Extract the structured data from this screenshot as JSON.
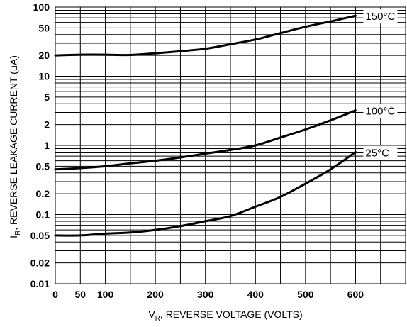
{
  "chart_data": {
    "type": "line",
    "title": "",
    "xlabel": "V",
    "xlabel_sub": "R",
    "xlabel_rest": ", REVERSE VOLTAGE (VOLTS)",
    "ylabel": "I",
    "ylabel_sub": "R",
    "ylabel_rest": ", REVERSE LEAKAGE CURRENT (μA)",
    "xlim": [
      0,
      700
    ],
    "ylim": [
      0.01,
      100
    ],
    "y_scale": "log",
    "grid": true,
    "x_ticks": [
      {
        "value": 0,
        "label": "0"
      },
      {
        "value": 50,
        "label": "50"
      },
      {
        "value": 100,
        "label": "100"
      },
      {
        "value": 200,
        "label": "200"
      },
      {
        "value": 300,
        "label": "300"
      },
      {
        "value": 400,
        "label": "400"
      },
      {
        "value": 500,
        "label": "500"
      },
      {
        "value": 600,
        "label": "600"
      }
    ],
    "x_gridlines": [
      0,
      50,
      100,
      150,
      200,
      250,
      300,
      350,
      400,
      450,
      500,
      550,
      600,
      650,
      700
    ],
    "y_ticks": [
      {
        "value": 0.01,
        "label": "0.01"
      },
      {
        "value": 0.02,
        "label": "0.02"
      },
      {
        "value": 0.05,
        "label": "0.05"
      },
      {
        "value": 0.1,
        "label": "0.1"
      },
      {
        "value": 0.2,
        "label": "0.2"
      },
      {
        "value": 0.5,
        "label": "0.5"
      },
      {
        "value": 1,
        "label": "1"
      },
      {
        "value": 2,
        "label": "2"
      },
      {
        "value": 5,
        "label": "5"
      },
      {
        "value": 10,
        "label": "10"
      },
      {
        "value": 20,
        "label": "20"
      },
      {
        "value": 50,
        "label": "50"
      },
      {
        "value": 100,
        "label": "100"
      }
    ],
    "y_gridlines": [
      0.01,
      0.02,
      0.03,
      0.04,
      0.05,
      0.06,
      0.07,
      0.08,
      0.09,
      0.1,
      0.2,
      0.3,
      0.4,
      0.5,
      0.6,
      0.7,
      0.8,
      0.9,
      1,
      2,
      3,
      4,
      5,
      6,
      7,
      8,
      9,
      10,
      20,
      30,
      40,
      50,
      60,
      70,
      80,
      90,
      100
    ],
    "series": [
      {
        "name": "150°C",
        "x": [
          0,
          50,
          100,
          150,
          200,
          250,
          300,
          350,
          400,
          450,
          500,
          550,
          600
        ],
        "y": [
          20,
          20.5,
          20.5,
          20.3,
          21.5,
          23,
          25,
          29,
          34,
          42,
          52,
          62,
          75
        ]
      },
      {
        "name": "100°C",
        "x": [
          0,
          50,
          100,
          150,
          200,
          250,
          300,
          350,
          400,
          450,
          500,
          550,
          600
        ],
        "y": [
          0.45,
          0.47,
          0.5,
          0.55,
          0.6,
          0.67,
          0.76,
          0.86,
          1.0,
          1.3,
          1.7,
          2.3,
          3.2
        ]
      },
      {
        "name": "25°C",
        "x": [
          0,
          50,
          100,
          150,
          200,
          250,
          300,
          350,
          400,
          450,
          500,
          550,
          600
        ],
        "y": [
          0.05,
          0.05,
          0.053,
          0.055,
          0.06,
          0.068,
          0.08,
          0.095,
          0.13,
          0.18,
          0.28,
          0.45,
          0.8
        ]
      }
    ]
  }
}
